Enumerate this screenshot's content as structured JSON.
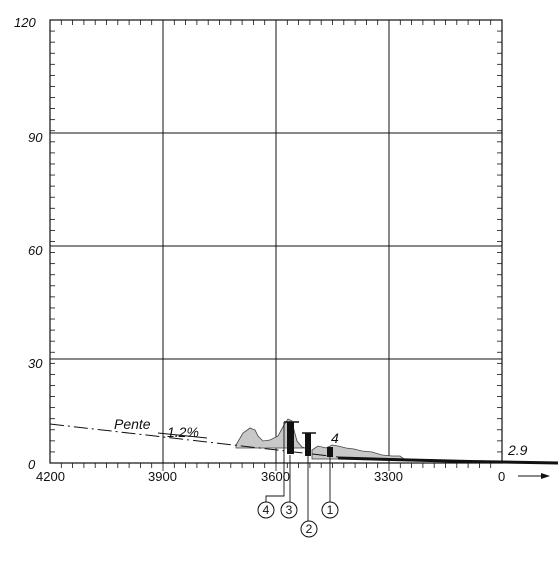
{
  "y_axis": {
    "ticks": [
      "0",
      "30",
      "60",
      "90",
      "120"
    ]
  },
  "x_axis": {
    "ticks": [
      "4200",
      "3900",
      "3600",
      "3300",
      "0"
    ]
  },
  "annotations": {
    "slope_word": "Pente",
    "slope_value": "1.2%",
    "obstacle_label": "4",
    "right_value": "2.9"
  },
  "markers": [
    "4",
    "3",
    "2",
    "1"
  ],
  "chart_data": {
    "type": "diagram",
    "x_range": [
      4200,
      0
    ],
    "y_range": [
      0,
      120
    ],
    "grid": true,
    "x_ticks": [
      4200,
      3900,
      3600,
      3300,
      0
    ],
    "y_ticks": [
      0,
      30,
      60,
      90,
      120
    ]
  }
}
